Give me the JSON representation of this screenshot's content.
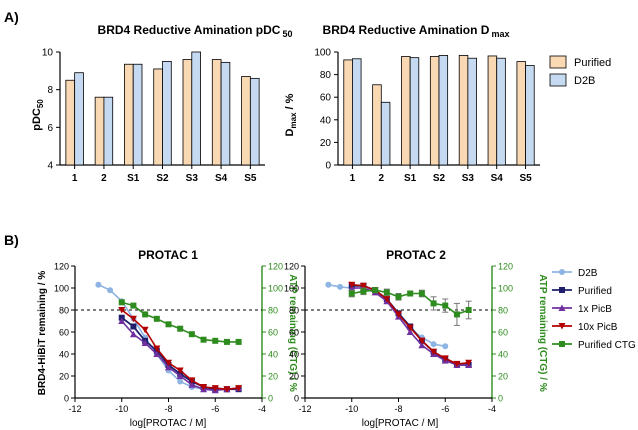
{
  "panel_labels": [
    "A)",
    "B)"
  ],
  "colors": {
    "purified": "#f9d9b4",
    "d2b": "#c5d9f1",
    "curve_d2b": "#8db4e2",
    "curve_purified": "#1f1f6b",
    "curve_1x": "#7030a0",
    "curve_10x": "#b30000",
    "curve_ctg": "#2e8b1e"
  },
  "chart_data": [
    {
      "type": "bar",
      "title_main": "BRD4 Reductive Amination pDC",
      "title_sub": "50",
      "ylabel_main": "pDC",
      "ylabel_sub": "50",
      "categories": [
        "1",
        "2",
        "S1",
        "S2",
        "S3",
        "S4",
        "S5"
      ],
      "ylim": [
        4,
        10
      ],
      "yticks": [
        "4",
        "6",
        "8",
        "10"
      ],
      "series": [
        {
          "name": "Purified",
          "values": [
            8.5,
            7.6,
            9.35,
            9.1,
            9.6,
            9.6,
            8.7
          ]
        },
        {
          "name": "D2B",
          "values": [
            8.9,
            7.6,
            9.35,
            9.5,
            10.0,
            9.45,
            8.6
          ]
        }
      ]
    },
    {
      "type": "bar",
      "title_main": "BRD4 Reductive Amination D",
      "title_sub": "max",
      "ylabel_main": "D",
      "ylabel_sub": "max",
      "ylabel_tail": " / %",
      "categories": [
        "1",
        "2",
        "S1",
        "S2",
        "S3",
        "S4",
        "S5"
      ],
      "ylim": [
        0,
        100
      ],
      "yticks": [
        "0",
        "20",
        "40",
        "60",
        "80",
        "100"
      ],
      "series": [
        {
          "name": "Purified",
          "values": [
            93,
            71,
            96,
            96,
            97,
            96.5,
            91.5
          ]
        },
        {
          "name": "D2B",
          "values": [
            94,
            55.5,
            95,
            97,
            94.5,
            94.5,
            88
          ]
        }
      ],
      "legend": [
        "Purified",
        "D2B"
      ]
    },
    {
      "type": "line",
      "title": "PROTAC 1",
      "xlabel": "log[PROTAC / M]",
      "ylabel_left": "BRD4-HiBiT remaining / %",
      "ylabel_right": "ATP remaining (CTG) / %",
      "xlim": [
        -12,
        -4
      ],
      "xticks": [
        "-12",
        "-10",
        "-8",
        "-6",
        "-4"
      ],
      "ylim": [
        0,
        120
      ],
      "yticks": [
        "0",
        "20",
        "40",
        "60",
        "80",
        "100",
        "120"
      ],
      "reference_line_y": 80,
      "series": [
        {
          "name": "D2B",
          "x": [
            -11,
            -10.5,
            -10,
            -9.5,
            -9,
            -8.5,
            -8,
            -7.5,
            -7,
            -6.5,
            -6
          ],
          "y": [
            103,
            98,
            88,
            72,
            55,
            40,
            25,
            15,
            10,
            8,
            7
          ]
        },
        {
          "name": "Purified",
          "x": [
            -10,
            -9.5,
            -9,
            -8.5,
            -8,
            -7.5,
            -7,
            -6.5,
            -6,
            -5.5,
            -5
          ],
          "y": [
            73,
            65,
            52,
            43,
            30,
            22,
            15,
            10,
            8,
            8,
            8
          ]
        },
        {
          "name": "1x PicB",
          "x": [
            -10,
            -9.5,
            -9,
            -8.5,
            -8,
            -7.5,
            -7,
            -6.5,
            -6,
            -5.5,
            -5
          ],
          "y": [
            70,
            58,
            50,
            40,
            28,
            20,
            12,
            8,
            7,
            8,
            9
          ]
        },
        {
          "name": "10x PicB",
          "x": [
            -10,
            -9.5,
            -9,
            -8.5,
            -8,
            -7.5,
            -7,
            -6.5,
            -6,
            -5.5,
            -5
          ],
          "y": [
            80,
            72,
            62,
            45,
            32,
            25,
            16,
            10,
            9,
            8,
            9
          ]
        },
        {
          "name": "Purified CTG",
          "x": [
            -10,
            -9.5,
            -9,
            -8.5,
            -8,
            -7.5,
            -7,
            -6.5,
            -6,
            -5.5,
            -5
          ],
          "y": [
            87,
            84,
            76,
            72,
            67,
            63,
            58,
            53,
            52,
            51,
            51
          ]
        }
      ]
    },
    {
      "type": "line",
      "title": "PROTAC 2",
      "xlabel": "log[PROTAC / M]",
      "ylabel_right": "ATP remaining (CTG) / %",
      "xlim": [
        -12,
        -4
      ],
      "xticks": [
        "-12",
        "-10",
        "-8",
        "-6",
        "-4"
      ],
      "ylim": [
        0,
        120
      ],
      "yticks": [
        "0",
        "20",
        "40",
        "60",
        "80",
        "100",
        "120"
      ],
      "reference_line_y": 80,
      "series": [
        {
          "name": "D2B",
          "x": [
            -11,
            -10.5,
            -10,
            -9.5,
            -9,
            -8.5,
            -8,
            -7.5,
            -7,
            -6.5,
            -6
          ],
          "y": [
            103,
            101,
            100,
            100,
            97,
            90,
            76,
            63,
            55,
            49,
            47
          ]
        },
        {
          "name": "Purified",
          "x": [
            -10,
            -9.5,
            -9,
            -8.5,
            -8,
            -7.5,
            -7,
            -6.5,
            -6,
            -5.5,
            -5
          ],
          "y": [
            102,
            102,
            98,
            90,
            77,
            65,
            52,
            42,
            35,
            30,
            30
          ]
        },
        {
          "name": "1x PicB",
          "x": [
            -10,
            -9.5,
            -9,
            -8.5,
            -8,
            -7.5,
            -7,
            -6.5,
            -6,
            -5.5,
            -5
          ],
          "y": [
            100,
            100,
            96,
            88,
            74,
            60,
            48,
            40,
            34,
            30,
            30
          ]
        },
        {
          "name": "10x PicB",
          "x": [
            -10,
            -9.5,
            -9,
            -8.5,
            -8,
            -7.5,
            -7,
            -6.5,
            -6,
            -5.5,
            -5
          ],
          "y": [
            103,
            102,
            98,
            90,
            76,
            64,
            52,
            42,
            36,
            31,
            32
          ]
        },
        {
          "name": "Purified CTG",
          "x": [
            -10,
            -9.5,
            -9,
            -8.5,
            -8,
            -7.5,
            -7,
            -6.5,
            -6,
            -5.5,
            -5
          ],
          "y": [
            95,
            97,
            98,
            96,
            92,
            95,
            95,
            86,
            84,
            76,
            80
          ],
          "error": [
            3,
            3,
            2,
            3,
            3,
            2,
            3,
            6,
            6,
            10,
            8
          ]
        }
      ],
      "legend": [
        "D2B",
        "Purified",
        "1x PicB",
        "10x PicB",
        "Purified CTG"
      ]
    }
  ]
}
